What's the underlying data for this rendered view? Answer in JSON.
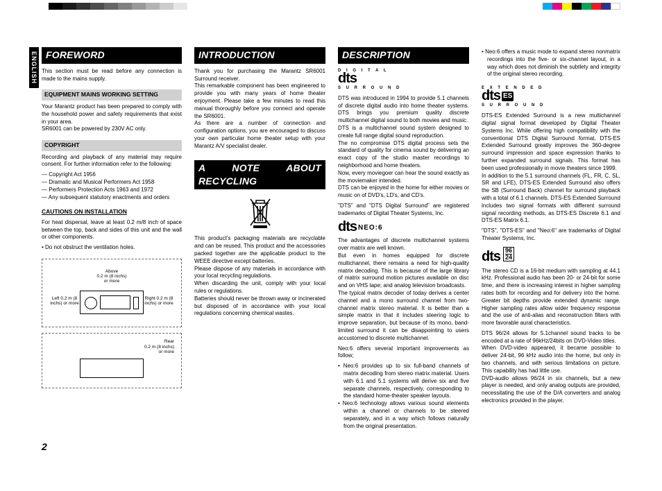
{
  "marks": {
    "greys": [
      "#000000",
      "#1a1a1a",
      "#333333",
      "#4d4d4d",
      "#666666",
      "#808080",
      "#999999",
      "#b3b3b3",
      "#cccccc",
      "#e6e6e6"
    ],
    "colors": [
      "#00aeef",
      "#ec008c",
      "#fff200",
      "#000000",
      "#00a651",
      "#ed1c24",
      "#2e3192",
      "#ffffff"
    ]
  },
  "lang_tab": "ENGLISH",
  "page_number": "2",
  "col1": {
    "title": "FOREWORD",
    "intro": "This section must be read before any connection is made to the mains supply.",
    "mains_heading": "EQUIPMENT MAINS WORKING SETTING",
    "mains_body": "Your Marantz product has been prepared to comply with the household power and safety requirements that exist in your area.\nSR6001 can be powered by 230V AC only.",
    "copyright_heading": "COPYRIGHT",
    "copyright_body": "Recording and playback of any material may require consent. For further information refer to the following:",
    "copyright_items": [
      "Copyright Act 1956",
      "Dramatic and Musical Performers Act 1958",
      "Performers Protection Acts 1963 and 1972",
      "Any subsequent statutory enactments and orders"
    ],
    "cautions_heading": "CAUTIONS ON INSTALLATION",
    "cautions_body": "For heat dispersal, leave at least 0.2 m/8 inch of space between the top, back and sides of this unit and the wall or other components.",
    "cautions_bullet": "Do not obstruct the ventilation holes.",
    "clearance": {
      "above": "Above\n0.2 m (8 inchs)\nor more",
      "left": "Left\n0.2 m (8 inchs)\nor more",
      "right": "Right\n0.2 m (8 inchs)\nor more",
      "rear": "Rear\n0.2 m (8 inchs)\nor more"
    }
  },
  "col2": {
    "title1": "INTRODUCTION",
    "intro_body": "Thank you for purchasing the Marantz SR6001 Surround receiver.\nThis remarkable component has been engineered to provide you with many years of home theater enjoyment. Please take a few minutes to read this manual thoroughly before you connect and operate the SR6001.\nAs there are a number of connection and configuration options, you are encouraged to discuss your own particular home theater setup with your Marantz A/V specialist dealer.",
    "title2": "A NOTE ABOUT RECYCLING",
    "recycle_body": "This product's packaging materials are recyclable and can be reused. This product and the accessories packed together are the applicable product to the WEEE directive except batteries.\nPlease dispose of any materials in accordance with your local recycling regulations.\nWhen discarding the unit, comply with your local rules or regulations.\nBatteries should never be thrown away or incinerated but disposed of in accordance with your local regulations concerning chemical wastes."
  },
  "col3": {
    "title": "DESCRIPTION",
    "dts_over": "D I G I T A L",
    "dts_under": "S U R R O U N D",
    "dts_body": "DTS was introduced in 1994 to provide 5.1 channels of discrete digital audio into home theater systems. DTS brings you premium quality discrete multichannel digital sound to both movies and music.\nDTS is a multichannel sound system designed to create full range digital sound reproduction.\nThe no compromise DTS digital process sets the standard of quality for cinema sound by delivering an exact copy of the studio master recordings to neighborhood and home theaters.\nNow, every moviegoer can hear the sound exactly as the moviemaker intended.\nDTS can be enjoyed in the home for either movies or music on of DVD's, LD's, and CD's.",
    "dts_tm": "\"DTS\" and \"DTS Digital Surround\" are registered trademarks of Digital Theater Systems, Inc.",
    "neo6_label": "NEO:6",
    "neo6_p1": "The advantages of discrete multichannel systems over matrix are well known.\nBut even in homes equipped for discrete multichannel, there remains a need for high-quality matrix decoding. This is because of the large library of matrix surround motion pictures available on disc and on VHS tape; and analog television broadcasts.\nThe typical matrix decoder of today derives a center channel and a mono surround channel from two-channel matrix stereo material. It is better than a simple matrix in that it includes steering logic to improve separation, but because of its mono, band-limited surround it can be disappointing to users accustomed to discrete multichannel.",
    "neo6_p2": "Neo:6 offers several important improvements as follow;",
    "neo6_bullets": [
      "Neo:6 provides up to six full-band channels of matrix decoding from stereo matrix material. Users with 6.1 and 5.1 systems will derive six and five separate channels, respectively, corresponding to the standard home-theater speaker layouts.",
      "Neo:6 technology allows various sound elements within a channel or channels to be steered separately, and in a way which follows naturally from the original presentation."
    ]
  },
  "col4": {
    "neo6_music": "Neo:6 offers a music mode to expand stereo nonmatrix recordings into the five- or six-channel layout, in a way which does not diminish the subtlety and integrity of the original stereo recording.",
    "es_over": "E X T E N D E D",
    "es_under": "S U R R O U N D",
    "es_body": "DTS-ES Extended Surround is a new multichannel digital signal format developed by Digital Theater Systems Inc. While offering high compatibility with the conventional DTS Digital Surround format, DTS-ES Extended Surround greatly improves the 360-degree surround impression and space expression thanks to further expanded surround signals. This format has been used professionally in movie theaters since 1999.\nIn addition to the 5.1 surround channels (FL, FR, C, SL, SR and LFE), DTS-ES Extended Surround also offers the SB (Surround Back) channel for surround playback with a total of 6.1 channels. DTS-ES Extended Surround includes two signal formats with different surround signal recording methods, as DTS-ES Discrete 6.1 and DTS-ES Matrix 6.1.",
    "es_tm": "\"DTS\", \"DTS-ES\" and \"Neo:6\" are trademarks of Digital Theater Systems, Inc.",
    "b96": "96",
    "b24": "24",
    "d9624_body": "The stereo CD is a 16-bit medium with sampling at 44.1 kHz. Professional audio has been 20- or 24-bit for some time, and there is increasing interest in higher sampling rates both for recording and for delivery into the home. Greater bit depths provide extended dynamic range. Higher sampling rates allow wider frequency response and the use of anti-alias and reconstruction filters with more favorable aural characteristics.",
    "d9624_p2": "DTS 96/24 allows for 5.1channel sound tracks to be encoded at a rate of 96kHz/24bits on DVD-Video titles.\nWhen DVD-video appeared, it became possible to deliver 24-bit, 96 kHz audio into the home, but only in two channels, and with serious limitations on picture. This capability has had little use.\nDVD-audio allows 96/24 in six channels, but a new player is needed, and only analog outputs are provided, necessitating the use of the D/A converters and analog electronics provided in the player."
  }
}
